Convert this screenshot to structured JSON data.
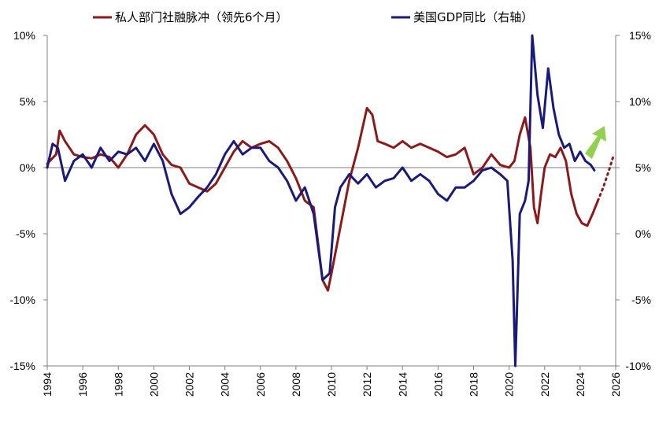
{
  "chart_data": {
    "type": "line",
    "legend": {
      "placement": "top",
      "items": [
        {
          "label": "私人部门社融脉冲（领先6个月）",
          "color": "#8B1A1A"
        },
        {
          "label": "美国GDP同比（右轴）",
          "color": "#1A1A7A"
        }
      ]
    },
    "x_axis": {
      "range": [
        1994,
        2026
      ],
      "ticks": [
        "1994",
        "1996",
        "1998",
        "2000",
        "2002",
        "2004",
        "2006",
        "2008",
        "2010",
        "2012",
        "2014",
        "2016",
        "2018",
        "2020",
        "2022",
        "2024",
        "2026"
      ]
    },
    "y_left": {
      "range": [
        -15,
        10
      ],
      "ticks": [
        {
          "value": 10,
          "label": "10%"
        },
        {
          "value": 5,
          "label": "5%"
        },
        {
          "value": 0,
          "label": "0%"
        },
        {
          "value": -5,
          "label": "-5%"
        },
        {
          "value": -10,
          "label": "-10%"
        },
        {
          "value": -15,
          "label": "-15%"
        }
      ]
    },
    "y_right": {
      "range": [
        -10,
        15
      ],
      "ticks": [
        {
          "value": 15,
          "label": "15%"
        },
        {
          "value": 10,
          "label": "10%"
        },
        {
          "value": 5,
          "label": "5%"
        },
        {
          "value": 0,
          "label": "0%"
        },
        {
          "value": -5,
          "label": "-5%"
        },
        {
          "value": -10,
          "label": "-10%"
        }
      ]
    },
    "grid": false,
    "series": [
      {
        "name": "私人部门社融脉冲（领先6个月）",
        "axis": "left",
        "color": "#8B1A1A",
        "x": [
          1994.0,
          1994.5,
          1994.7,
          1995.0,
          1995.5,
          1996.0,
          1996.5,
          1997.0,
          1997.5,
          1998.0,
          1998.5,
          1999.0,
          1999.5,
          2000.0,
          2000.5,
          2001.0,
          2001.5,
          2002.0,
          2002.5,
          2003.0,
          2003.5,
          2004.0,
          2004.5,
          2005.0,
          2005.5,
          2006.0,
          2006.5,
          2007.0,
          2007.5,
          2008.0,
          2008.5,
          2009.0,
          2009.5,
          2009.8,
          2010.0,
          2010.5,
          2011.0,
          2011.5,
          2012.0,
          2012.3,
          2012.6,
          2013.0,
          2013.5,
          2014.0,
          2014.5,
          2015.0,
          2015.5,
          2016.0,
          2016.5,
          2017.0,
          2017.5,
          2018.0,
          2018.5,
          2019.0,
          2019.5,
          2020.0,
          2020.3,
          2020.6,
          2020.9,
          2021.2,
          2021.4,
          2021.6,
          2021.8,
          2022.0,
          2022.3,
          2022.6,
          2022.9,
          2023.2,
          2023.5,
          2023.8,
          2024.1,
          2024.4,
          2024.7,
          2025.0
        ],
        "y": [
          0.3,
          1.0,
          2.8,
          2.0,
          1.0,
          0.8,
          0.7,
          1.0,
          0.8,
          0.0,
          1.0,
          2.5,
          3.2,
          2.5,
          1.0,
          0.2,
          0.0,
          -1.2,
          -1.5,
          -1.8,
          -1.2,
          0.0,
          1.2,
          2.0,
          1.5,
          1.8,
          2.0,
          1.5,
          0.5,
          -0.8,
          -2.5,
          -3.0,
          -8.5,
          -9.3,
          -8.0,
          -4.5,
          -1.0,
          1.5,
          4.5,
          4.0,
          2.0,
          1.8,
          1.5,
          2.0,
          1.5,
          1.8,
          1.5,
          1.2,
          0.8,
          1.0,
          1.5,
          -0.5,
          0.0,
          1.0,
          0.2,
          0.0,
          0.5,
          2.5,
          3.8,
          1.5,
          -3.0,
          -4.2,
          -2.0,
          0.0,
          1.0,
          0.8,
          1.5,
          0.5,
          -2.0,
          -3.5,
          -4.2,
          -4.4,
          -3.5,
          -2.5
        ]
      },
      {
        "name": "私人部门社融脉冲（领先6个月）",
        "axis": "left",
        "color": "#8B1A1A",
        "style": "dotted",
        "x": [
          2025.0,
          2025.3,
          2025.6,
          2025.9
        ],
        "y": [
          -2.5,
          -1.5,
          -0.3,
          1.0
        ]
      },
      {
        "name": "美国GDP同比（右轴）",
        "axis": "right",
        "color": "#1A1A7A",
        "x": [
          1994.0,
          1994.3,
          1994.6,
          1995.0,
          1995.5,
          1996.0,
          1996.5,
          1997.0,
          1997.5,
          1998.0,
          1998.5,
          1999.0,
          1999.5,
          2000.0,
          2000.5,
          2001.0,
          2001.5,
          2002.0,
          2002.5,
          2003.0,
          2003.5,
          2004.0,
          2004.5,
          2005.0,
          2005.5,
          2006.0,
          2006.5,
          2007.0,
          2007.5,
          2008.0,
          2008.5,
          2009.0,
          2009.5,
          2009.9,
          2010.2,
          2010.5,
          2011.0,
          2011.5,
          2012.0,
          2012.5,
          2013.0,
          2013.5,
          2014.0,
          2014.5,
          2015.0,
          2015.5,
          2016.0,
          2016.5,
          2017.0,
          2017.5,
          2018.0,
          2018.5,
          2019.0,
          2019.5,
          2019.9,
          2020.2,
          2020.35,
          2020.6,
          2020.9,
          2021.1,
          2021.3,
          2021.6,
          2021.9,
          2022.2,
          2022.5,
          2022.8,
          2023.1,
          2023.4,
          2023.7,
          2024.0,
          2024.3,
          2024.6,
          2024.8
        ],
        "y": [
          5.0,
          6.8,
          6.5,
          4.0,
          5.5,
          6.0,
          5.0,
          6.5,
          5.5,
          6.2,
          6.0,
          6.5,
          5.5,
          6.8,
          5.5,
          3.0,
          1.5,
          2.0,
          2.8,
          3.5,
          4.5,
          6.0,
          7.0,
          6.0,
          6.5,
          6.5,
          5.5,
          5.0,
          4.0,
          2.5,
          3.5,
          1.5,
          -3.5,
          -3.0,
          2.0,
          3.5,
          4.5,
          3.8,
          4.5,
          3.5,
          4.0,
          4.2,
          5.0,
          4.0,
          4.5,
          4.0,
          3.0,
          2.5,
          3.5,
          3.5,
          4.0,
          4.8,
          5.0,
          4.5,
          4.0,
          -2.0,
          -10.0,
          1.5,
          2.5,
          4.0,
          15.0,
          10.5,
          8.0,
          12.5,
          9.5,
          7.5,
          6.5,
          6.8,
          5.5,
          6.2,
          5.5,
          5.2,
          4.8
        ]
      }
    ],
    "annotation": {
      "shape": "arrow",
      "direction": "up-right",
      "color": "#92D050"
    }
  }
}
